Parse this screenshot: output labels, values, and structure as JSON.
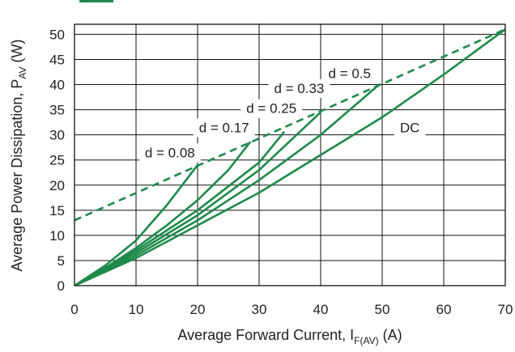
{
  "chart_data": {
    "type": "line",
    "xlabel": {
      "main": "Average Forward Current, I",
      "sub": "F(AV)",
      "unit": " (A)"
    },
    "ylabel": {
      "main": "Average Power Dissipation, P",
      "sub": "AV",
      "unit": " (W)"
    },
    "xlim": [
      0,
      70
    ],
    "ylim": [
      0,
      52
    ],
    "xticks": [
      0,
      10,
      20,
      30,
      40,
      50,
      60,
      70
    ],
    "yticks": [
      0,
      5,
      10,
      15,
      20,
      25,
      30,
      35,
      40,
      45,
      50
    ],
    "grid": true,
    "line_color": "#1e8a4a",
    "series": [
      {
        "name": "d = 0.08",
        "x": [
          0,
          5,
          10,
          15,
          20
        ],
        "y": [
          0,
          4,
          9,
          16,
          24
        ]
      },
      {
        "name": "d = 0.17",
        "x": [
          0,
          5,
          10,
          15,
          20,
          25,
          28.5
        ],
        "y": [
          0,
          3.5,
          7.5,
          12,
          17,
          23,
          28.5
        ]
      },
      {
        "name": "d = 0.25",
        "x": [
          0,
          10,
          20,
          30,
          34
        ],
        "y": [
          0,
          7,
          15,
          24.5,
          30.5
        ]
      },
      {
        "name": "d = 0.33",
        "x": [
          0,
          10,
          20,
          30,
          40
        ],
        "y": [
          0,
          6.5,
          14,
          23,
          34.5
        ]
      },
      {
        "name": "d = 0.5",
        "x": [
          0,
          10,
          20,
          30,
          40,
          49.5
        ],
        "y": [
          0,
          6,
          13,
          21,
          30,
          40
        ]
      },
      {
        "name": "DC",
        "x": [
          0,
          10,
          20,
          30,
          40,
          50,
          60,
          70
        ],
        "y": [
          0,
          5.5,
          12,
          18.5,
          26,
          33.5,
          42,
          51
        ]
      }
    ],
    "limit_line": {
      "style": "dashed",
      "x": [
        0,
        70
      ],
      "y": [
        13,
        51
      ]
    },
    "annotations": [
      {
        "text": "d = 0.08",
        "x": 15.5,
        "y": 26.5
      },
      {
        "text": "d = 0.17",
        "x": 24.3,
        "y": 31.5
      },
      {
        "text": "d = 0.25",
        "x": 32,
        "y": 35.3
      },
      {
        "text": "d = 0.33",
        "x": 36.5,
        "y": 39.3
      },
      {
        "text": "d = 0.5",
        "x": 44.7,
        "y": 42.3
      },
      {
        "text": "DC",
        "x": 54.5,
        "y": 31.5
      }
    ]
  }
}
